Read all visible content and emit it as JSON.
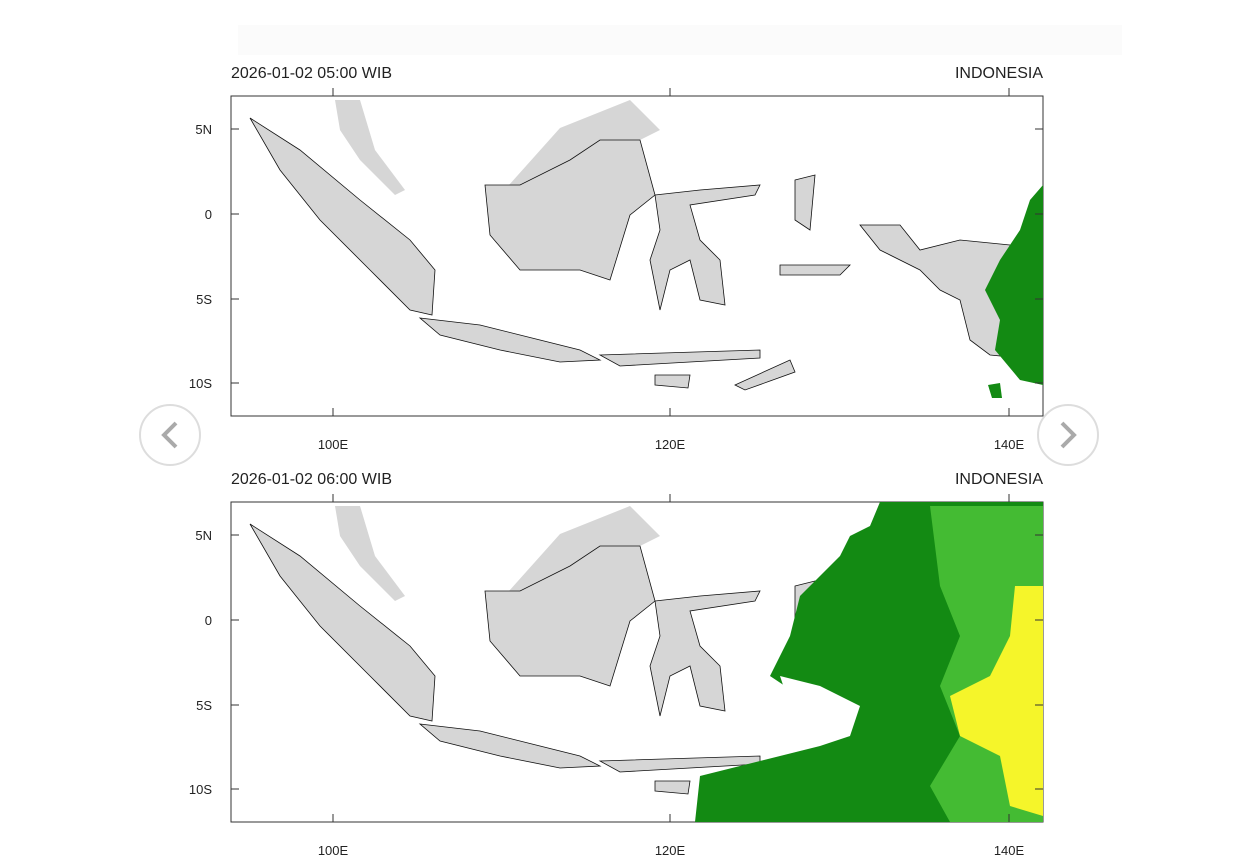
{
  "panels": [
    {
      "time": "2026-01-02  05:00 WIB",
      "region": "INDONESIA",
      "lat_ticks": [
        "5N",
        "0",
        "5S",
        "10S"
      ],
      "lon_ticks": [
        "100E",
        "120E",
        "140E"
      ]
    },
    {
      "time": "2026-01-02  06:00 WIB",
      "region": "INDONESIA",
      "lat_ticks": [
        "5N",
        "0",
        "5S",
        "10S"
      ],
      "lon_ticks": [
        "100E",
        "120E",
        "140E"
      ]
    }
  ]
}
